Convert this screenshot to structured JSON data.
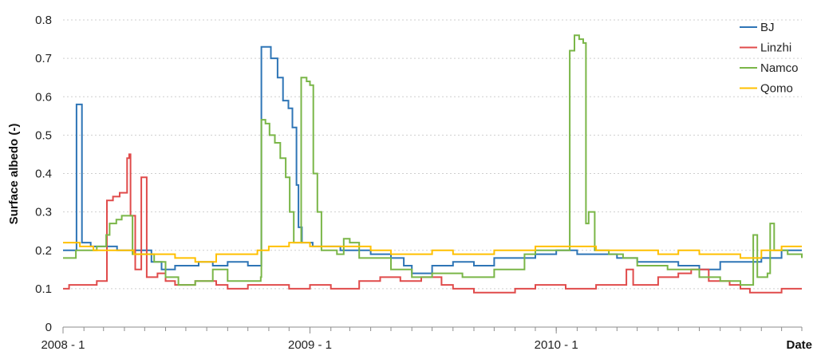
{
  "chart_data": {
    "type": "line",
    "title": "",
    "xlabel": "Date",
    "ylabel": "Surface albedo (-)",
    "ylim": [
      0,
      0.8
    ],
    "yticks": [
      "0",
      "0.1",
      "0.2",
      "0.3",
      "0.4",
      "0.5",
      "0.6",
      "0.7",
      "0.8"
    ],
    "xlim": [
      "2008-01-01",
      "2010-12-31"
    ],
    "xticks": [
      {
        "label": "2008 - 1",
        "date": "2008-01-01"
      },
      {
        "label": "2009 - 1",
        "date": "2009-01-01"
      },
      {
        "label": "2010 - 1",
        "date": "2010-01-01"
      }
    ],
    "grid": "horizontal dashed",
    "legend_position": "top-right",
    "series": [
      {
        "name": "BJ",
        "color": "#2e75b6",
        "points": [
          [
            "2008-01-01",
            0.2
          ],
          [
            "2008-01-20",
            0.2
          ],
          [
            "2008-01-21",
            0.58
          ],
          [
            "2008-01-28",
            0.58
          ],
          [
            "2008-01-29",
            0.22
          ],
          [
            "2008-02-10",
            0.22
          ],
          [
            "2008-02-11",
            0.21
          ],
          [
            "2008-03-20",
            0.21
          ],
          [
            "2008-03-21",
            0.2
          ],
          [
            "2008-05-10",
            0.2
          ],
          [
            "2008-05-11",
            0.17
          ],
          [
            "2008-05-25",
            0.17
          ],
          [
            "2008-05-26",
            0.15
          ],
          [
            "2008-06-15",
            0.16
          ],
          [
            "2008-07-20",
            0.17
          ],
          [
            "2008-08-10",
            0.16
          ],
          [
            "2008-09-01",
            0.17
          ],
          [
            "2008-10-01",
            0.16
          ],
          [
            "2008-10-20",
            0.16
          ],
          [
            "2008-10-21",
            0.73
          ],
          [
            "2008-11-03",
            0.73
          ],
          [
            "2008-11-04",
            0.7
          ],
          [
            "2008-11-14",
            0.65
          ],
          [
            "2008-11-22",
            0.59
          ],
          [
            "2008-11-30",
            0.57
          ],
          [
            "2008-12-06",
            0.52
          ],
          [
            "2008-12-12",
            0.37
          ],
          [
            "2008-12-15",
            0.26
          ],
          [
            "2008-12-20",
            0.22
          ],
          [
            "2009-01-05",
            0.21
          ],
          [
            "2009-02-15",
            0.2
          ],
          [
            "2009-04-01",
            0.19
          ],
          [
            "2009-05-01",
            0.18
          ],
          [
            "2009-05-20",
            0.16
          ],
          [
            "2009-06-01",
            0.14
          ],
          [
            "2009-07-01",
            0.16
          ],
          [
            "2009-08-01",
            0.17
          ],
          [
            "2009-09-01",
            0.16
          ],
          [
            "2009-10-01",
            0.18
          ],
          [
            "2009-12-01",
            0.19
          ],
          [
            "2010-01-01",
            0.2
          ],
          [
            "2010-02-01",
            0.19
          ],
          [
            "2010-04-01",
            0.18
          ],
          [
            "2010-05-01",
            0.17
          ],
          [
            "2010-07-01",
            0.16
          ],
          [
            "2010-08-01",
            0.15
          ],
          [
            "2010-09-01",
            0.17
          ],
          [
            "2010-10-01",
            0.17
          ],
          [
            "2010-11-01",
            0.18
          ],
          [
            "2010-12-01",
            0.2
          ],
          [
            "2010-12-31",
            0.2
          ]
        ]
      },
      {
        "name": "Linzhi",
        "color": "#e04b4b",
        "points": [
          [
            "2008-01-01",
            0.1
          ],
          [
            "2008-01-10",
            0.11
          ],
          [
            "2008-02-10",
            0.11
          ],
          [
            "2008-02-20",
            0.12
          ],
          [
            "2008-03-05",
            0.12
          ],
          [
            "2008-03-06",
            0.33
          ],
          [
            "2008-03-15",
            0.34
          ],
          [
            "2008-03-25",
            0.35
          ],
          [
            "2008-04-05",
            0.44
          ],
          [
            "2008-04-08",
            0.45
          ],
          [
            "2008-04-10",
            0.29
          ],
          [
            "2008-04-16",
            0.29
          ],
          [
            "2008-04-17",
            0.15
          ],
          [
            "2008-04-25",
            0.15
          ],
          [
            "2008-04-26",
            0.39
          ],
          [
            "2008-05-03",
            0.39
          ],
          [
            "2008-05-04",
            0.13
          ],
          [
            "2008-05-20",
            0.14
          ],
          [
            "2008-06-01",
            0.12
          ],
          [
            "2008-06-15",
            0.11
          ],
          [
            "2008-07-15",
            0.12
          ],
          [
            "2008-08-15",
            0.11
          ],
          [
            "2008-09-01",
            0.1
          ],
          [
            "2008-10-01",
            0.11
          ],
          [
            "2008-11-01",
            0.11
          ],
          [
            "2008-12-01",
            0.1
          ],
          [
            "2009-01-01",
            0.11
          ],
          [
            "2009-02-01",
            0.1
          ],
          [
            "2009-03-15",
            0.12
          ],
          [
            "2009-04-15",
            0.13
          ],
          [
            "2009-05-15",
            0.12
          ],
          [
            "2009-06-15",
            0.13
          ],
          [
            "2009-07-15",
            0.11
          ],
          [
            "2009-08-01",
            0.1
          ],
          [
            "2009-09-01",
            0.09
          ],
          [
            "2009-11-01",
            0.1
          ],
          [
            "2009-12-01",
            0.11
          ],
          [
            "2010-01-15",
            0.1
          ],
          [
            "2010-03-01",
            0.11
          ],
          [
            "2010-04-01",
            0.11
          ],
          [
            "2010-04-15",
            0.15
          ],
          [
            "2010-04-25",
            0.11
          ],
          [
            "2010-06-01",
            0.13
          ],
          [
            "2010-07-01",
            0.14
          ],
          [
            "2010-07-20",
            0.15
          ],
          [
            "2010-08-15",
            0.12
          ],
          [
            "2010-09-15",
            0.11
          ],
          [
            "2010-10-01",
            0.1
          ],
          [
            "2010-10-15",
            0.09
          ],
          [
            "2010-12-01",
            0.1
          ],
          [
            "2010-12-31",
            0.1
          ]
        ]
      },
      {
        "name": "Namco",
        "color": "#7ab648",
        "points": [
          [
            "2008-01-01",
            0.18
          ],
          [
            "2008-01-20",
            0.2
          ],
          [
            "2008-02-20",
            0.21
          ],
          [
            "2008-03-05",
            0.24
          ],
          [
            "2008-03-10",
            0.27
          ],
          [
            "2008-03-20",
            0.28
          ],
          [
            "2008-03-28",
            0.29
          ],
          [
            "2008-04-12",
            0.29
          ],
          [
            "2008-04-13",
            0.19
          ],
          [
            "2008-05-15",
            0.17
          ],
          [
            "2008-06-01",
            0.13
          ],
          [
            "2008-06-20",
            0.11
          ],
          [
            "2008-07-15",
            0.12
          ],
          [
            "2008-08-10",
            0.15
          ],
          [
            "2008-09-01",
            0.12
          ],
          [
            "2008-10-20",
            0.13
          ],
          [
            "2008-10-21",
            0.54
          ],
          [
            "2008-10-27",
            0.53
          ],
          [
            "2008-11-02",
            0.5
          ],
          [
            "2008-11-10",
            0.48
          ],
          [
            "2008-11-18",
            0.44
          ],
          [
            "2008-11-26",
            0.39
          ],
          [
            "2008-12-02",
            0.3
          ],
          [
            "2008-12-08",
            0.22
          ],
          [
            "2008-12-18",
            0.22
          ],
          [
            "2008-12-19",
            0.65
          ],
          [
            "2008-12-27",
            0.64
          ],
          [
            "2009-01-01",
            0.63
          ],
          [
            "2009-01-06",
            0.4
          ],
          [
            "2009-01-12",
            0.3
          ],
          [
            "2009-01-18",
            0.2
          ],
          [
            "2009-02-10",
            0.19
          ],
          [
            "2009-02-20",
            0.23
          ],
          [
            "2009-03-01",
            0.22
          ],
          [
            "2009-03-15",
            0.18
          ],
          [
            "2009-05-01",
            0.15
          ],
          [
            "2009-06-01",
            0.13
          ],
          [
            "2009-07-01",
            0.14
          ],
          [
            "2009-08-15",
            0.13
          ],
          [
            "2009-10-01",
            0.15
          ],
          [
            "2009-11-15",
            0.19
          ],
          [
            "2009-12-01",
            0.2
          ],
          [
            "2010-01-01",
            0.2
          ],
          [
            "2010-01-20",
            0.2
          ],
          [
            "2010-01-21",
            0.72
          ],
          [
            "2010-01-27",
            0.72
          ],
          [
            "2010-01-28",
            0.76
          ],
          [
            "2010-02-04",
            0.75
          ],
          [
            "2010-02-10",
            0.74
          ],
          [
            "2010-02-14",
            0.27
          ],
          [
            "2010-02-18",
            0.3
          ],
          [
            "2010-02-26",
            0.3
          ],
          [
            "2010-02-27",
            0.2
          ],
          [
            "2010-03-20",
            0.19
          ],
          [
            "2010-04-10",
            0.18
          ],
          [
            "2010-05-01",
            0.16
          ],
          [
            "2010-06-15",
            0.15
          ],
          [
            "2010-08-01",
            0.13
          ],
          [
            "2010-09-01",
            0.12
          ],
          [
            "2010-10-01",
            0.11
          ],
          [
            "2010-10-20",
            0.24
          ],
          [
            "2010-10-26",
            0.13
          ],
          [
            "2010-11-10",
            0.14
          ],
          [
            "2010-11-14",
            0.27
          ],
          [
            "2010-11-20",
            0.2
          ],
          [
            "2010-12-10",
            0.19
          ],
          [
            "2010-12-31",
            0.18
          ]
        ]
      },
      {
        "name": "Qomo",
        "color": "#ffc000",
        "points": [
          [
            "2008-01-01",
            0.22
          ],
          [
            "2008-01-25",
            0.22
          ],
          [
            "2008-01-26",
            0.21
          ],
          [
            "2008-02-15",
            0.2
          ],
          [
            "2008-03-15",
            0.2
          ],
          [
            "2008-04-15",
            0.19
          ],
          [
            "2008-05-15",
            0.19
          ],
          [
            "2008-06-15",
            0.18
          ],
          [
            "2008-07-15",
            0.17
          ],
          [
            "2008-08-15",
            0.19
          ],
          [
            "2008-09-15",
            0.19
          ],
          [
            "2008-10-15",
            0.2
          ],
          [
            "2008-11-01",
            0.21
          ],
          [
            "2008-12-01",
            0.22
          ],
          [
            "2009-01-01",
            0.21
          ],
          [
            "2009-02-01",
            0.21
          ],
          [
            "2009-03-01",
            0.21
          ],
          [
            "2009-04-01",
            0.2
          ],
          [
            "2009-05-01",
            0.19
          ],
          [
            "2009-06-01",
            0.19
          ],
          [
            "2009-07-01",
            0.2
          ],
          [
            "2009-08-01",
            0.19
          ],
          [
            "2009-09-01",
            0.19
          ],
          [
            "2009-10-01",
            0.2
          ],
          [
            "2009-11-01",
            0.2
          ],
          [
            "2009-12-01",
            0.21
          ],
          [
            "2010-01-01",
            0.21
          ],
          [
            "2010-02-01",
            0.21
          ],
          [
            "2010-03-01",
            0.2
          ],
          [
            "2010-04-01",
            0.2
          ],
          [
            "2010-05-01",
            0.2
          ],
          [
            "2010-06-01",
            0.19
          ],
          [
            "2010-07-01",
            0.2
          ],
          [
            "2010-08-01",
            0.19
          ],
          [
            "2010-09-01",
            0.19
          ],
          [
            "2010-10-01",
            0.18
          ],
          [
            "2010-11-01",
            0.2
          ],
          [
            "2010-12-01",
            0.21
          ],
          [
            "2010-12-31",
            0.21
          ]
        ]
      }
    ]
  }
}
